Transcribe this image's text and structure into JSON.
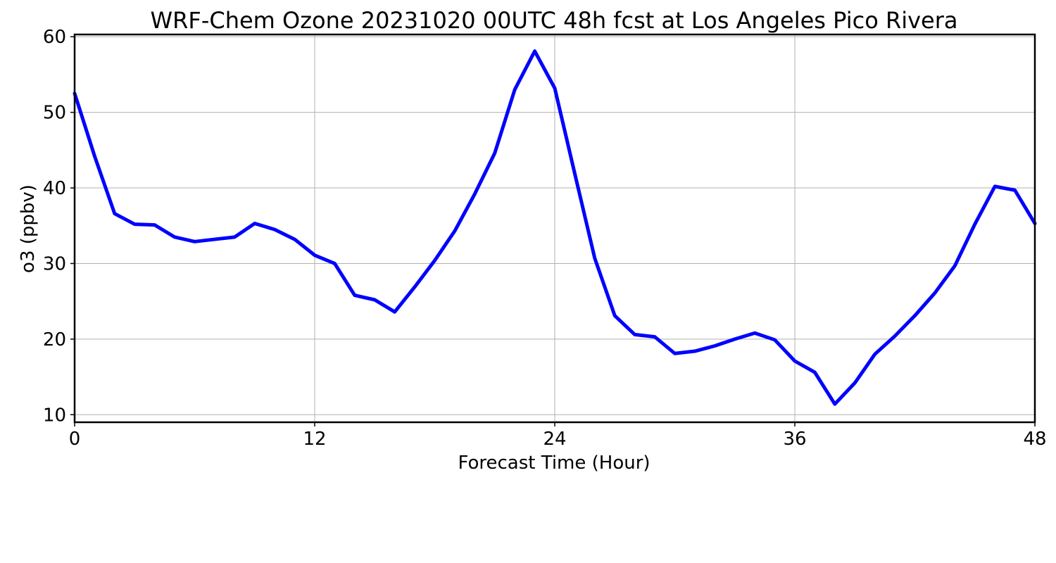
{
  "chart_data": {
    "type": "line",
    "title": "WRF-Chem Ozone  20231020 00UTC 48h fcst at Los Angeles Pico Rivera",
    "xlabel": "Forecast Time (Hour)",
    "ylabel": "o3  (ppbv)",
    "xlim": [
      0,
      48
    ],
    "ylim": [
      9,
      60.3
    ],
    "xticks": [
      0,
      12,
      24,
      36,
      48
    ],
    "yticks": [
      10,
      20,
      30,
      40,
      50,
      60
    ],
    "grid": true,
    "series": [
      {
        "color": "#0000ff",
        "x": [
          0,
          1,
          2,
          3,
          4,
          5,
          6,
          7,
          8,
          9,
          10,
          11,
          12,
          13,
          14,
          15,
          16,
          17,
          18,
          19,
          20,
          21,
          22,
          23,
          24,
          25,
          26,
          27,
          28,
          29,
          30,
          31,
          32,
          33,
          34,
          35,
          36,
          37,
          38,
          39,
          40,
          41,
          42,
          43,
          44,
          45,
          46,
          47,
          48
        ],
        "values": [
          52.5,
          44.2,
          36.6,
          35.2,
          35.1,
          33.5,
          32.9,
          33.2,
          33.5,
          35.3,
          34.5,
          33.2,
          31.1,
          30.0,
          25.8,
          25.2,
          23.6,
          26.9,
          30.4,
          34.3,
          39.2,
          44.6,
          53.0,
          58.1,
          53.2,
          41.9,
          30.7,
          23.1,
          20.6,
          20.3,
          18.1,
          18.4,
          19.1,
          20.0,
          20.8,
          19.9,
          17.1,
          15.6,
          11.4,
          14.2,
          18.0,
          20.4,
          23.1,
          26.1,
          29.7,
          35.2,
          40.2,
          39.7,
          35.3
        ]
      }
    ]
  }
}
